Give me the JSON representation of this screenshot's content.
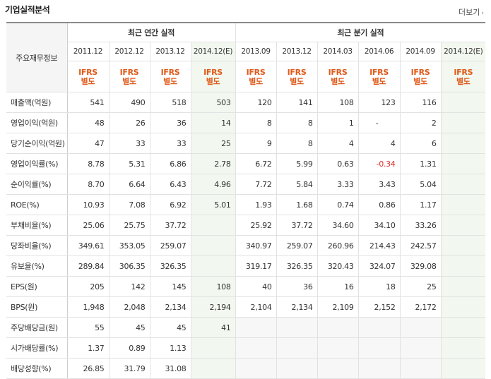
{
  "title": "기업실적분석",
  "more_label": "더보기",
  "header": {
    "label_col": "주요재무정보",
    "annual_group": "최근 연간 실적",
    "quarter_group": "최근 분기 실적",
    "annual_periods": [
      "2011.12",
      "2012.12",
      "2013.12",
      "2014.12(E)"
    ],
    "quarter_periods": [
      "2013.09",
      "2013.12",
      "2014.03",
      "2014.06",
      "2014.09",
      "2014.12(E)"
    ],
    "ifrs_line1": "IFRS",
    "ifrs_line2": "별도"
  },
  "rows": [
    {
      "label": "매출액(억원)",
      "annual": [
        "541",
        "490",
        "518",
        "503"
      ],
      "quarter": [
        "120",
        "141",
        "108",
        "123",
        "116",
        ""
      ]
    },
    {
      "label": "영업이익(억원)",
      "annual": [
        "48",
        "26",
        "36",
        "14"
      ],
      "quarter": [
        "8",
        "8",
        "1",
        "-",
        "2",
        ""
      ]
    },
    {
      "label": "당기순이익(억원)",
      "annual": [
        "47",
        "33",
        "33",
        "25"
      ],
      "quarter": [
        "9",
        "8",
        "4",
        "4",
        "6",
        ""
      ]
    },
    {
      "label": "영업이익률(%)",
      "annual": [
        "8.78",
        "5.31",
        "6.86",
        "2.78"
      ],
      "quarter": [
        "6.72",
        "5.99",
        "0.63",
        "-0.34",
        "1.31",
        ""
      ]
    },
    {
      "label": "순이익률(%)",
      "annual": [
        "8.70",
        "6.64",
        "6.43",
        "4.96"
      ],
      "quarter": [
        "7.72",
        "5.84",
        "3.33",
        "3.43",
        "5.04",
        ""
      ]
    },
    {
      "label": "ROE(%)",
      "annual": [
        "10.93",
        "7.08",
        "6.92",
        "5.01"
      ],
      "quarter": [
        "1.93",
        "1.68",
        "0.74",
        "0.86",
        "1.17",
        ""
      ]
    },
    {
      "label": "부채비율(%)",
      "annual": [
        "25.06",
        "25.75",
        "37.72",
        ""
      ],
      "quarter": [
        "25.92",
        "37.72",
        "34.60",
        "34.10",
        "33.26",
        ""
      ]
    },
    {
      "label": "당좌비율(%)",
      "annual": [
        "349.61",
        "353.05",
        "259.07",
        ""
      ],
      "quarter": [
        "340.97",
        "259.07",
        "260.96",
        "214.43",
        "242.57",
        ""
      ]
    },
    {
      "label": "유보율(%)",
      "annual": [
        "289.84",
        "306.35",
        "326.35",
        ""
      ],
      "quarter": [
        "319.17",
        "326.35",
        "320.43",
        "324.07",
        "329.08",
        ""
      ]
    },
    {
      "label": "EPS(원)",
      "annual": [
        "205",
        "142",
        "145",
        "108"
      ],
      "quarter": [
        "40",
        "36",
        "16",
        "18",
        "25",
        ""
      ]
    },
    {
      "label": "BPS(원)",
      "annual": [
        "1,948",
        "2,048",
        "2,134",
        "2,194"
      ],
      "quarter": [
        "2,104",
        "2,134",
        "2,109",
        "2,152",
        "2,172",
        ""
      ]
    },
    {
      "label": "주당배당금(원)",
      "annual": [
        "55",
        "45",
        "45",
        "41"
      ],
      "quarter": [
        "",
        "",
        "",
        "",
        "",
        ""
      ]
    },
    {
      "label": "시가배당률(%)",
      "annual": [
        "1.37",
        "0.89",
        "1.13",
        ""
      ],
      "quarter": [
        "",
        "",
        "",
        "",
        "",
        ""
      ]
    },
    {
      "label": "배당성향(%)",
      "annual": [
        "26.85",
        "31.79",
        "31.08",
        ""
      ],
      "quarter": [
        "",
        "",
        "",
        "",
        "",
        ""
      ]
    }
  ]
}
